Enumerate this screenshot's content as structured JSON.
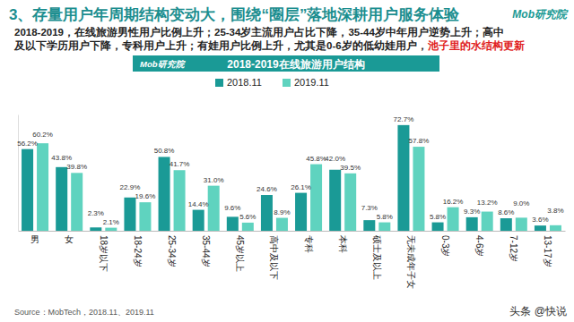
{
  "chart_data": {
    "type": "bar",
    "title": "3、存量用户年周期结构变动大，围绕“圈层”落地深耕用户服务体验",
    "subtitle": [
      "2018-2019，在线旅游男性用户比例上升；25-34岁主流用户占比下降，35-44岁中年用户逆势上升；高中",
      "及以下学历用户下降，专科用户上升；有娃用户比例上升，尤其是0-6岁的低幼娃用户，"
    ],
    "subtitle_highlight": "池子里的水结构更新",
    "chart_title": "2018-2019在线旅游用户结构",
    "logo": "Mob研究院",
    "source": "Source：MobTech，2018.11、2019.11",
    "watermark": "头条 @快说",
    "categories": [
      "男",
      "女",
      "18岁以下",
      "18-24岁",
      "25-34岁",
      "35-44岁",
      "45岁以上",
      "高中及以下",
      "专科",
      "本科",
      "硕士及以上",
      "无未成年子女",
      "0-3岁",
      "4-6岁",
      "7-12岁",
      "13-17岁"
    ],
    "series": [
      {
        "name": "2018.11",
        "color": "#1a9a96",
        "values": [
          56.2,
          43.8,
          2.3,
          22.9,
          50.8,
          14.4,
          9.6,
          24.6,
          26.1,
          42.0,
          7.3,
          72.7,
          5.8,
          9.3,
          8.6,
          3.6
        ],
        "value_labels": [
          "56.2%",
          "43.8%",
          "2.3%",
          "22.9%",
          "50.8%",
          "14.4%",
          "9.6%",
          "24.6%",
          "26.1%",
          "42.0%",
          "7.3%",
          "72.7%",
          "5.8%",
          "9.3%",
          "8.6%",
          "3.6%"
        ]
      },
      {
        "name": "2019.11",
        "color": "#5fd3bf",
        "values": [
          60.2,
          39.8,
          2.1,
          19.6,
          41.7,
          31.0,
          5.6,
          8.9,
          45.8,
          39.5,
          5.8,
          57.8,
          16.2,
          13.2,
          9.0,
          3.8
        ],
        "value_labels": [
          "60.2%",
          "39.8%",
          "2.1%",
          "19.6%",
          "41.7%",
          "31.0%",
          "5.6%",
          "8.9%",
          "45.8%",
          "39.5%",
          "5.8%",
          "57.8%",
          "16.2%",
          "13.2%",
          "9.0%",
          "3.8%"
        ]
      }
    ],
    "ylim": [
      0,
      80
    ],
    "tick_labels": "x",
    "data_labels": true,
    "legend": "top"
  }
}
